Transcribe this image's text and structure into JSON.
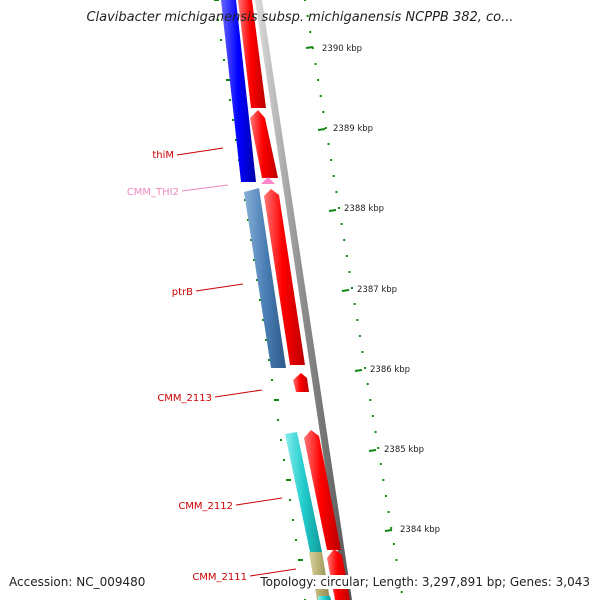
{
  "title": "Clavibacter michiganensis subsp. michiganensis NCPPB 382, co...",
  "footer": {
    "accession": "Accession: NC_009480",
    "summary": "Topology: circular; Length: 3,297,891 bp; Genes: 3,043"
  },
  "colors": {
    "forward_cds": "#ff0000",
    "thiM": "#0000ff",
    "thi_riboswitch": "#ff88cc",
    "ptrB": "#4a7fb5",
    "CMM_2112": "#22cccc",
    "CMM_2111": "#b8b070",
    "backbone": "#8c8c8c",
    "ticks": "#118811",
    "label_red": "#cc0000",
    "label_pink": "#ee88bb"
  },
  "ticks": [
    {
      "label": "2390 kbp",
      "kbp": 2390
    },
    {
      "label": "2389 kbp",
      "kbp": 2389
    },
    {
      "label": "2388 kbp",
      "kbp": 2388
    },
    {
      "label": "2387 kbp",
      "kbp": 2387
    },
    {
      "label": "2386 kbp",
      "kbp": 2386
    },
    {
      "label": "2385 kbp",
      "kbp": 2385
    },
    {
      "label": "2384 kbp",
      "kbp": 2384
    }
  ],
  "features": [
    {
      "label": "thiM",
      "label_color": "label_red",
      "color": "thiM"
    },
    {
      "label": "CMM_THI2",
      "label_color": "label_pink",
      "color": "thi_riboswitch"
    },
    {
      "label": "ptrB",
      "label_color": "label_red",
      "color": "ptrB"
    },
    {
      "label": "CMM_2113",
      "label_color": "label_red",
      "color": "forward_cds"
    },
    {
      "label": "CMM_2112",
      "label_color": "label_red",
      "color": "CMM_2112"
    },
    {
      "label": "CMM_2111",
      "label_color": "label_red",
      "color": "CMM_2111"
    }
  ]
}
